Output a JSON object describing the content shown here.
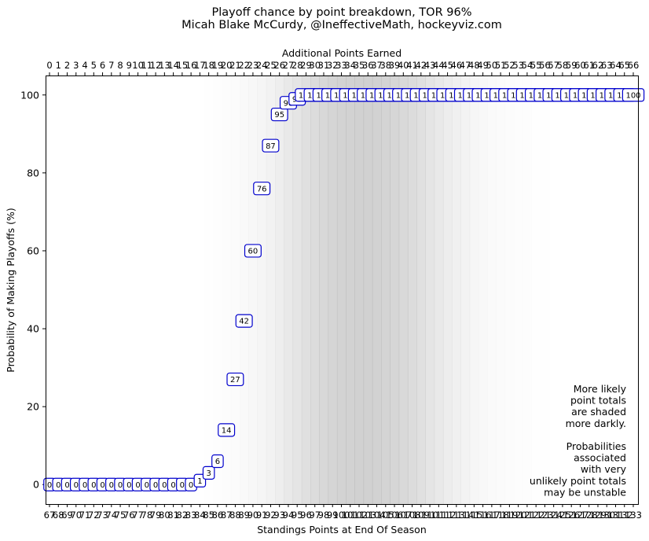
{
  "chart_data": {
    "type": "line",
    "title": "Playoff chance by point breakdown, TOR 96%",
    "subtitle": "Micah Blake McCurdy, @IneffectiveMath, hockeyviz.com",
    "xlabel": "Standings Points at End Of Season",
    "x2label": "Additional Points Earned",
    "ylabel": "Probability of Making Playoffs (%)",
    "x_bottom": [
      67,
      68,
      69,
      70,
      71,
      72,
      73,
      74,
      75,
      76,
      77,
      78,
      79,
      80,
      81,
      82,
      83,
      84,
      85,
      86,
      87,
      88,
      89,
      90,
      91,
      92,
      93,
      94,
      95,
      96,
      97,
      98,
      99,
      100,
      101,
      102,
      103,
      104,
      105,
      106,
      107,
      108,
      109,
      110,
      111,
      112,
      113,
      114,
      115,
      116,
      117,
      118,
      119,
      120,
      121,
      122,
      123,
      124,
      125,
      126,
      127,
      128,
      129,
      130,
      131,
      132,
      133
    ],
    "x_top": [
      0,
      1,
      2,
      3,
      4,
      5,
      6,
      7,
      8,
      9,
      10,
      11,
      12,
      13,
      14,
      15,
      16,
      17,
      18,
      19,
      20,
      21,
      22,
      23,
      24,
      25,
      26,
      27,
      28,
      29,
      30,
      31,
      32,
      33,
      34,
      35,
      36,
      37,
      38,
      39,
      40,
      41,
      42,
      43,
      44,
      45,
      46,
      47,
      48,
      49,
      50,
      51,
      52,
      53,
      54,
      55,
      56,
      57,
      58,
      59,
      60,
      61,
      62,
      63,
      64,
      65,
      66
    ],
    "values": [
      0,
      0,
      0,
      0,
      0,
      0,
      0,
      0,
      0,
      0,
      0,
      0,
      0,
      0,
      0,
      0,
      0,
      1,
      3,
      6,
      14,
      27,
      42,
      60,
      76,
      87,
      95,
      98,
      99,
      100,
      100,
      100,
      100,
      100,
      100,
      100,
      100,
      100,
      100,
      100,
      100,
      100,
      100,
      100,
      100,
      100,
      100,
      100,
      100,
      100,
      100,
      100,
      100,
      100,
      100,
      100,
      100,
      100,
      100,
      100,
      100,
      100,
      100,
      100,
      100,
      100,
      100
    ],
    "shading": [
      0,
      0,
      0,
      0,
      0,
      0,
      0,
      0,
      0,
      0,
      0,
      0,
      0,
      0,
      0,
      0,
      0,
      0,
      0.01,
      0.02,
      0.03,
      0.04,
      0.06,
      0.08,
      0.1,
      0.13,
      0.17,
      0.21,
      0.25,
      0.3,
      0.34,
      0.38,
      0.41,
      0.43,
      0.44,
      0.45,
      0.45,
      0.44,
      0.42,
      0.4,
      0.37,
      0.34,
      0.3,
      0.26,
      0.22,
      0.18,
      0.15,
      0.12,
      0.09,
      0.07,
      0.05,
      0.04,
      0.03,
      0.02,
      0.015,
      0.01,
      0.008,
      0.005,
      0.003,
      0.002,
      0.001,
      0,
      0,
      0,
      0,
      0,
      0
    ],
    "yticks": [
      0,
      20,
      40,
      60,
      80,
      100
    ],
    "ylim": [
      -5,
      105
    ],
    "note": [
      "More likely",
      "point totals",
      "are shaded",
      "more darkly.",
      "",
      "Probabilities",
      "associated",
      "with very",
      "unlikely point totals",
      "may be unstable"
    ],
    "colors": {
      "marker_edge": "#0000cc",
      "shade": "#999999"
    }
  }
}
